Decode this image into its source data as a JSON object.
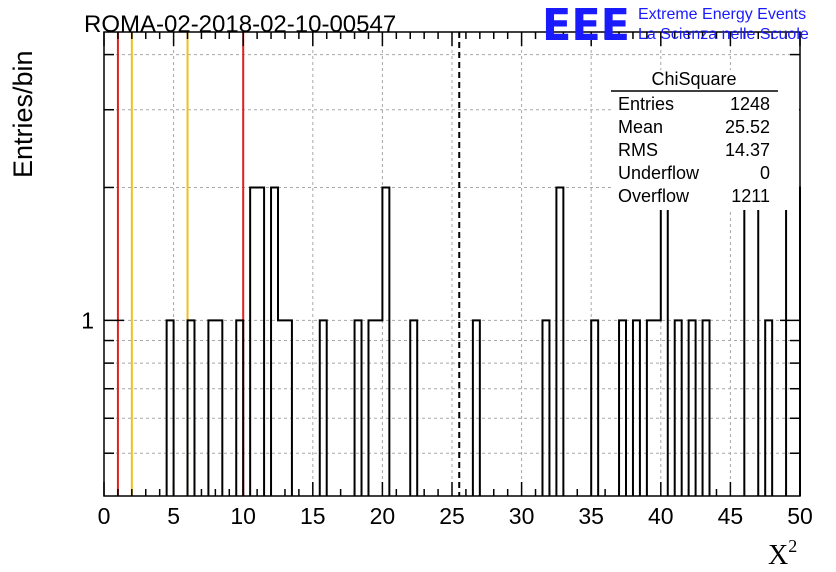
{
  "chart_data": {
    "type": "bar",
    "title": "ROMA-02-2018-02-10-00547",
    "xlabel": "X",
    "xlabel_superscript": "2",
    "ylabel": "Entries/bin",
    "xlim": [
      0,
      50
    ],
    "ylim": [
      0.4,
      4.5
    ],
    "y_log_scale": true,
    "x_ticks": [
      "0",
      "5",
      "10",
      "15",
      "20",
      "25",
      "30",
      "35",
      "40",
      "45",
      "50"
    ],
    "y_tick_labels": [
      "1"
    ],
    "grid": true,
    "bin_width": 0.5,
    "bins": [
      {
        "x": 4.5,
        "y": 1
      },
      {
        "x": 6.0,
        "y": 1
      },
      {
        "x": 7.5,
        "y": 1
      },
      {
        "x": 8.0,
        "y": 1
      },
      {
        "x": 9.5,
        "y": 1
      },
      {
        "x": 10.5,
        "y": 2
      },
      {
        "x": 11.0,
        "y": 2
      },
      {
        "x": 12.0,
        "y": 2
      },
      {
        "x": 12.5,
        "y": 1
      },
      {
        "x": 13.0,
        "y": 1
      },
      {
        "x": 15.5,
        "y": 1
      },
      {
        "x": 18.0,
        "y": 1
      },
      {
        "x": 19.0,
        "y": 1
      },
      {
        "x": 19.5,
        "y": 1
      },
      {
        "x": 20.0,
        "y": 2
      },
      {
        "x": 22.0,
        "y": 1
      },
      {
        "x": 26.5,
        "y": 1
      },
      {
        "x": 31.5,
        "y": 1
      },
      {
        "x": 32.5,
        "y": 2
      },
      {
        "x": 35.0,
        "y": 1
      },
      {
        "x": 37.0,
        "y": 1
      },
      {
        "x": 38.0,
        "y": 1
      },
      {
        "x": 39.0,
        "y": 1
      },
      {
        "x": 39.5,
        "y": 1
      },
      {
        "x": 40.0,
        "y": 2
      },
      {
        "x": 41.0,
        "y": 1
      },
      {
        "x": 42.0,
        "y": 1
      },
      {
        "x": 43.0,
        "y": 1
      },
      {
        "x": 46.0,
        "y": 2
      },
      {
        "x": 46.5,
        "y": 2
      },
      {
        "x": 47.5,
        "y": 1
      },
      {
        "x": 49.0,
        "y": 2
      },
      {
        "x": 49.5,
        "y": 2
      }
    ],
    "vertical_markers": [
      {
        "x": 1.0,
        "color": "#e02020",
        "style": "solid"
      },
      {
        "x": 2.0,
        "color": "#f0c020",
        "style": "solid"
      },
      {
        "x": 6.0,
        "color": "#f0c020",
        "style": "solid"
      },
      {
        "x": 10.0,
        "color": "#e02020",
        "style": "solid"
      },
      {
        "x": 25.52,
        "color": "#000000",
        "style": "dashed"
      }
    ],
    "stats_box": {
      "title": "ChiSquare",
      "rows": [
        {
          "label": "Entries",
          "value": "1248"
        },
        {
          "label": "Mean",
          "value": "25.52"
        },
        {
          "label": "RMS",
          "value": "14.37"
        },
        {
          "label": "Underflow",
          "value": "0"
        },
        {
          "label": "Overflow",
          "value": "1211"
        }
      ],
      "placement": "top-right"
    }
  },
  "logo": {
    "mark": "EEE",
    "line1": "Extreme Energy Events",
    "line2": "La Scienza nelle Scuole",
    "color": "#1a1aff"
  }
}
